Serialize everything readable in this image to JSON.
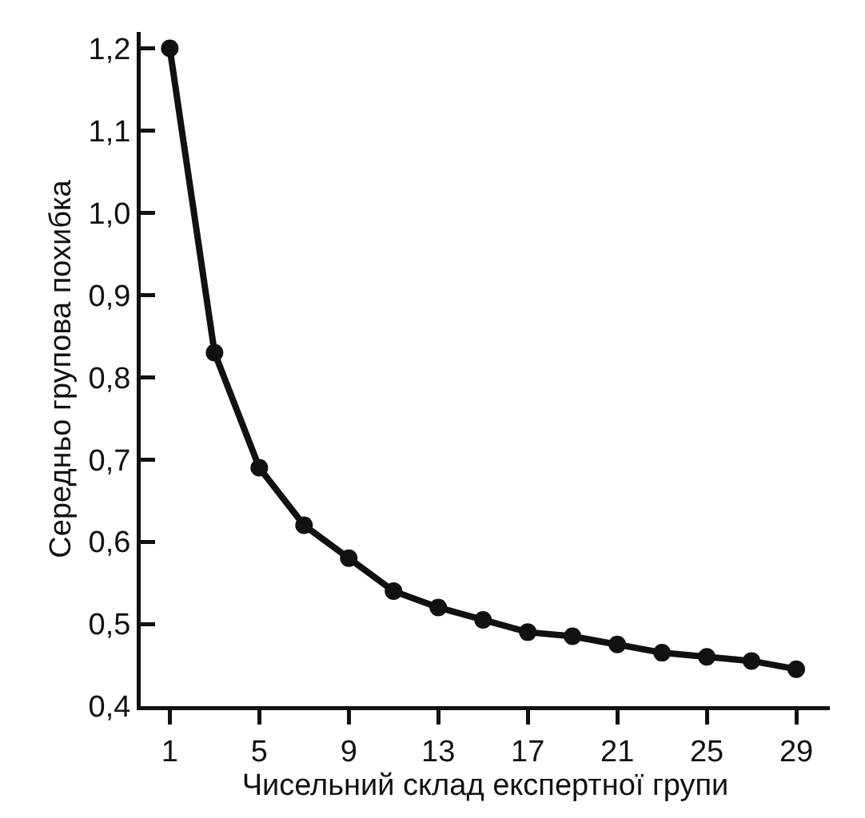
{
  "chart_data": {
    "type": "line",
    "xlabel": "Чисельний склад експертної групи",
    "ylabel": "Середньо групова похибка",
    "x": [
      1,
      3,
      5,
      7,
      9,
      11,
      13,
      15,
      17,
      19,
      21,
      23,
      25,
      27,
      29
    ],
    "series": [
      {
        "color": "#111111",
        "values": [
          1.2,
          0.83,
          0.69,
          0.62,
          0.58,
          0.54,
          0.52,
          0.505,
          0.49,
          0.485,
          0.475,
          0.465,
          0.46,
          0.455,
          0.445
        ]
      }
    ],
    "xlim": [
      -0.3,
      30.5
    ],
    "xticks": [
      1,
      5,
      9,
      13,
      17,
      21,
      25,
      29
    ],
    "ylim": [
      0.4,
      1.22
    ],
    "yticks": [
      {
        "value": 0.4,
        "label": "0,4"
      },
      {
        "value": 0.5,
        "label": "0,5"
      },
      {
        "value": 0.6,
        "label": "0,6"
      },
      {
        "value": 0.7,
        "label": "0,7"
      },
      {
        "value": 0.8,
        "label": "0,8"
      },
      {
        "value": 0.9,
        "label": "0,9"
      },
      {
        "value": 1.0,
        "label": "1,0"
      },
      {
        "value": 1.1,
        "label": "1,1"
      },
      {
        "value": 1.2,
        "label": "1,2"
      }
    ],
    "grid": false,
    "marker": "circle",
    "line_style": "solid"
  }
}
